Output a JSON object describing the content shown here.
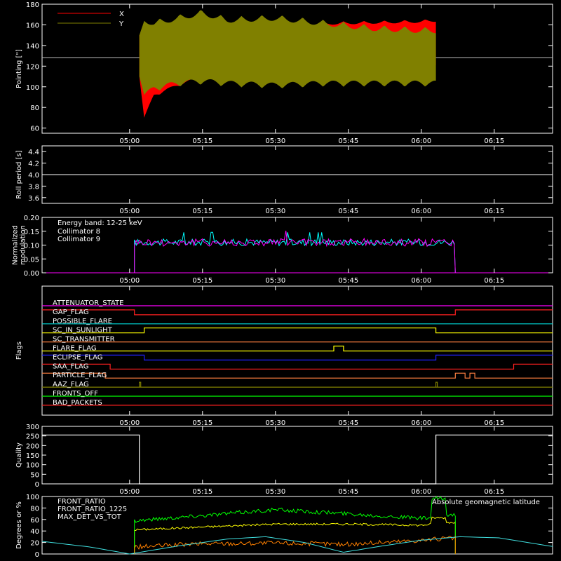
{
  "chart_data": [
    {
      "type": "area",
      "ylabel": "Pointing [\"]",
      "ylim": [
        55,
        180
      ],
      "yticks": [
        60,
        80,
        100,
        120,
        140,
        160,
        180
      ],
      "xlim": [
        "04:42",
        "06:27"
      ],
      "xticks": [
        "05:00",
        "05:15",
        "05:30",
        "05:45",
        "06:00",
        "06:15"
      ],
      "reference_line": 128,
      "series": [
        {
          "name": "X",
          "color": "#ff0000",
          "x": [
            "05:02",
            "05:03",
            "05:05",
            "05:10",
            "05:15",
            "05:20",
            "05:30",
            "05:40",
            "05:50",
            "06:00",
            "06:03"
          ],
          "upper": [
            150,
            158,
            148,
            158,
            160,
            160,
            162,
            163,
            164,
            165,
            166
          ],
          "lower": [
            110,
            68,
            90,
            100,
            108,
            112,
            115,
            117,
            118,
            118,
            118
          ]
        },
        {
          "name": "Y",
          "color": "#808000",
          "x": [
            "05:02",
            "05:03",
            "05:05",
            "05:10",
            "05:15",
            "05:20",
            "05:30",
            "05:40",
            "05:50",
            "06:00",
            "06:03"
          ],
          "upper": [
            150,
            168,
            165,
            170,
            175,
            168,
            170,
            165,
            160,
            158,
            158
          ],
          "lower": [
            110,
            88,
            95,
            100,
            102,
            100,
            98,
            100,
            100,
            100,
            100
          ]
        }
      ]
    },
    {
      "type": "line",
      "ylabel": "Roll period [s]",
      "ylim": [
        3.5,
        4.5
      ],
      "yticks": [
        "3.6",
        "3.8",
        "4.0",
        "4.2",
        "4.4"
      ],
      "xticks": [
        "05:00",
        "05:15",
        "05:30",
        "05:45",
        "06:00",
        "06:15"
      ],
      "series": [
        {
          "color": "#ffffff",
          "x": [
            "04:42",
            "06:27"
          ],
          "values": [
            4.0,
            4.0
          ]
        }
      ]
    },
    {
      "type": "line",
      "ylabel": "Normalized modulation",
      "ylim": [
        0,
        0.2
      ],
      "yticks": [
        "0.00",
        "0.05",
        "0.10",
        "0.15",
        "0.20"
      ],
      "xticks": [
        "05:00",
        "05:15",
        "05:30",
        "05:45",
        "06:00",
        "06:15"
      ],
      "annotation": "Energy band: 12-25 keV",
      "range": [
        "05:01",
        "06:07"
      ],
      "series": [
        {
          "name": "Collimator 8",
          "color": "#00ffff",
          "mean": 0.11,
          "amplitude": 0.012
        },
        {
          "name": "Collimator 9",
          "color": "#ff00ff",
          "mean": 0.11,
          "amplitude": 0.014
        }
      ]
    },
    {
      "type": "line",
      "ylabel": "Flags",
      "xticks": [
        "05:00",
        "05:15",
        "05:30",
        "05:45",
        "06:00",
        "06:15"
      ],
      "flags": [
        {
          "name": "ATTENUATOR_STATE",
          "color": "#ff00ff",
          "on": []
        },
        {
          "name": "GAP_FLAG",
          "color": "#ff2020",
          "on": [
            [
              "04:42",
              "05:01"
            ],
            [
              "06:07",
              "06:27"
            ]
          ]
        },
        {
          "name": "POSSIBLE_FLARE",
          "color": "#00d8d8",
          "on": []
        },
        {
          "name": "SC_IN_SUNLIGHT",
          "color": "#ffff00",
          "on": [
            [
              "05:03",
              "06:03"
            ]
          ]
        },
        {
          "name": "SC_TRANSMITTER",
          "color": "#ff8040",
          "on": []
        },
        {
          "name": "FLARE_FLAG",
          "color": "#ffff00",
          "on": [
            [
              "05:42",
              "05:44"
            ]
          ]
        },
        {
          "name": "ECLIPSE_FLAG",
          "color": "#2020ff",
          "on": [
            [
              "04:42",
              "05:03"
            ],
            [
              "06:03",
              "06:27"
            ]
          ]
        },
        {
          "name": "SAA_FLAG",
          "color": "#ff2020",
          "on": [
            [
              "04:42",
              "04:56"
            ],
            [
              "06:19",
              "06:27"
            ]
          ]
        },
        {
          "name": "PARTICLE_FLAG",
          "color": "#ff8040",
          "on": [
            [
              "04:42",
              "04:55"
            ],
            [
              "06:07",
              "06:09"
            ],
            [
              "06:10",
              "06:11"
            ]
          ]
        },
        {
          "name": "AAZ_FLAG",
          "color": "#808000",
          "on": [
            [
              "05:02",
              "05:02"
            ],
            [
              "06:03",
              "06:03"
            ]
          ]
        },
        {
          "name": "FRONTS_OFF",
          "color": "#00ff00",
          "on": []
        },
        {
          "name": "BAD_PACKETS",
          "color": "#ff2020",
          "on": []
        }
      ]
    },
    {
      "type": "line",
      "ylabel": "Quality",
      "ylim": [
        0,
        300
      ],
      "yticks": [
        "0",
        "50",
        "100",
        "150",
        "200",
        "250",
        "300"
      ],
      "xticks": [
        "05:00",
        "05:15",
        "05:30",
        "05:45",
        "06:00",
        "06:15"
      ],
      "series": [
        {
          "color": "#ffffff",
          "x": [
            "04:42",
            "05:02",
            "05:02",
            "06:03",
            "06:03",
            "06:27"
          ],
          "values": [
            255,
            255,
            0,
            0,
            255,
            255
          ]
        }
      ]
    },
    {
      "type": "line",
      "ylabel": "Degrees or %",
      "ylim": [
        0,
        100
      ],
      "yticks": [
        "0",
        "20",
        "40",
        "60",
        "80",
        "100"
      ],
      "xticks": [
        "05:00",
        "05:15",
        "05:30",
        "05:45",
        "06:00",
        "06:15"
      ],
      "annotation": "Absolute geomagnetic latitude",
      "range": [
        "05:01",
        "06:07"
      ],
      "series": [
        {
          "name": "FRONT_RATIO",
          "color": "#ffff00",
          "x": [
            "05:01",
            "05:15",
            "05:30",
            "05:45",
            "06:00",
            "06:02",
            "06:02",
            "06:05",
            "06:05",
            "06:07"
          ],
          "values": [
            42,
            47,
            52,
            52,
            50,
            52,
            63,
            63,
            55,
            55
          ]
        },
        {
          "name": "FRONT_RATIO_1225",
          "color": "#00ff00",
          "x": [
            "05:01",
            "05:15",
            "05:30",
            "05:45",
            "06:00",
            "06:02",
            "06:02",
            "06:05",
            "06:05",
            "06:07"
          ],
          "values": [
            58,
            67,
            77,
            70,
            62,
            62,
            96,
            96,
            68,
            68
          ]
        },
        {
          "name": "MAX_DET_VS_TOT",
          "color": "#ff8000",
          "x": [
            "05:01",
            "05:15",
            "05:30",
            "05:45",
            "06:00",
            "06:07"
          ],
          "values": [
            12,
            18,
            19,
            17,
            24,
            28
          ]
        },
        {
          "name": "Absolute geomagnetic latitude",
          "color": "#40e0e0",
          "x": [
            "04:42",
            "04:52",
            "05:00",
            "05:10",
            "05:20",
            "05:28",
            "05:36",
            "05:44",
            "05:52",
            "06:00",
            "06:08",
            "06:16",
            "06:27"
          ],
          "values": [
            22,
            12,
            0,
            14,
            26,
            30,
            20,
            3,
            14,
            24,
            30,
            28,
            13
          ]
        }
      ]
    }
  ]
}
